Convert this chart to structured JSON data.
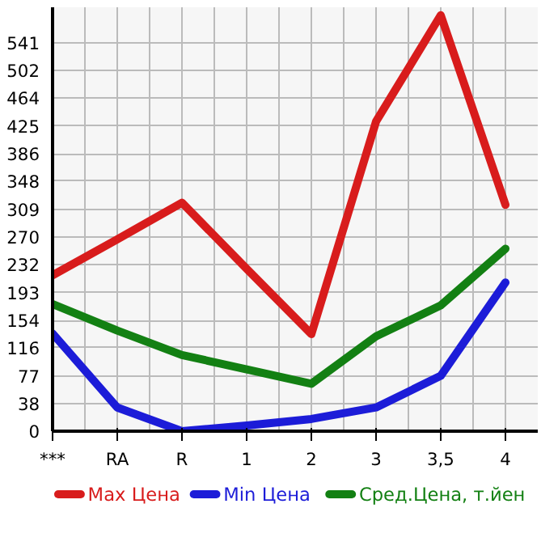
{
  "chart_data": {
    "type": "line",
    "categories": [
      "***",
      "RA",
      "R",
      "1",
      "2",
      "3",
      "3,5",
      "4"
    ],
    "series": [
      {
        "name": "Max Цена",
        "color": "#d81c1c",
        "values": [
          217,
          267,
          318,
          226,
          135,
          431,
          579,
          315
        ]
      },
      {
        "name": "Min Цена",
        "color": "#1c1cd8",
        "values": [
          136,
          33,
          0,
          8,
          17,
          33,
          77,
          207
        ]
      },
      {
        "name": "Сред.Цена, т.йен",
        "color": "#138013",
        "values": [
          177,
          140,
          106,
          86,
          66,
          132,
          175,
          254
        ]
      }
    ],
    "ylim": [
      0,
      590
    ],
    "yticks": [
      0,
      38,
      77,
      116,
      154,
      193,
      232,
      270,
      309,
      348,
      386,
      425,
      464,
      502,
      541
    ],
    "grid": true,
    "legend": "bottom",
    "marker": "none",
    "line_style": "solid"
  }
}
